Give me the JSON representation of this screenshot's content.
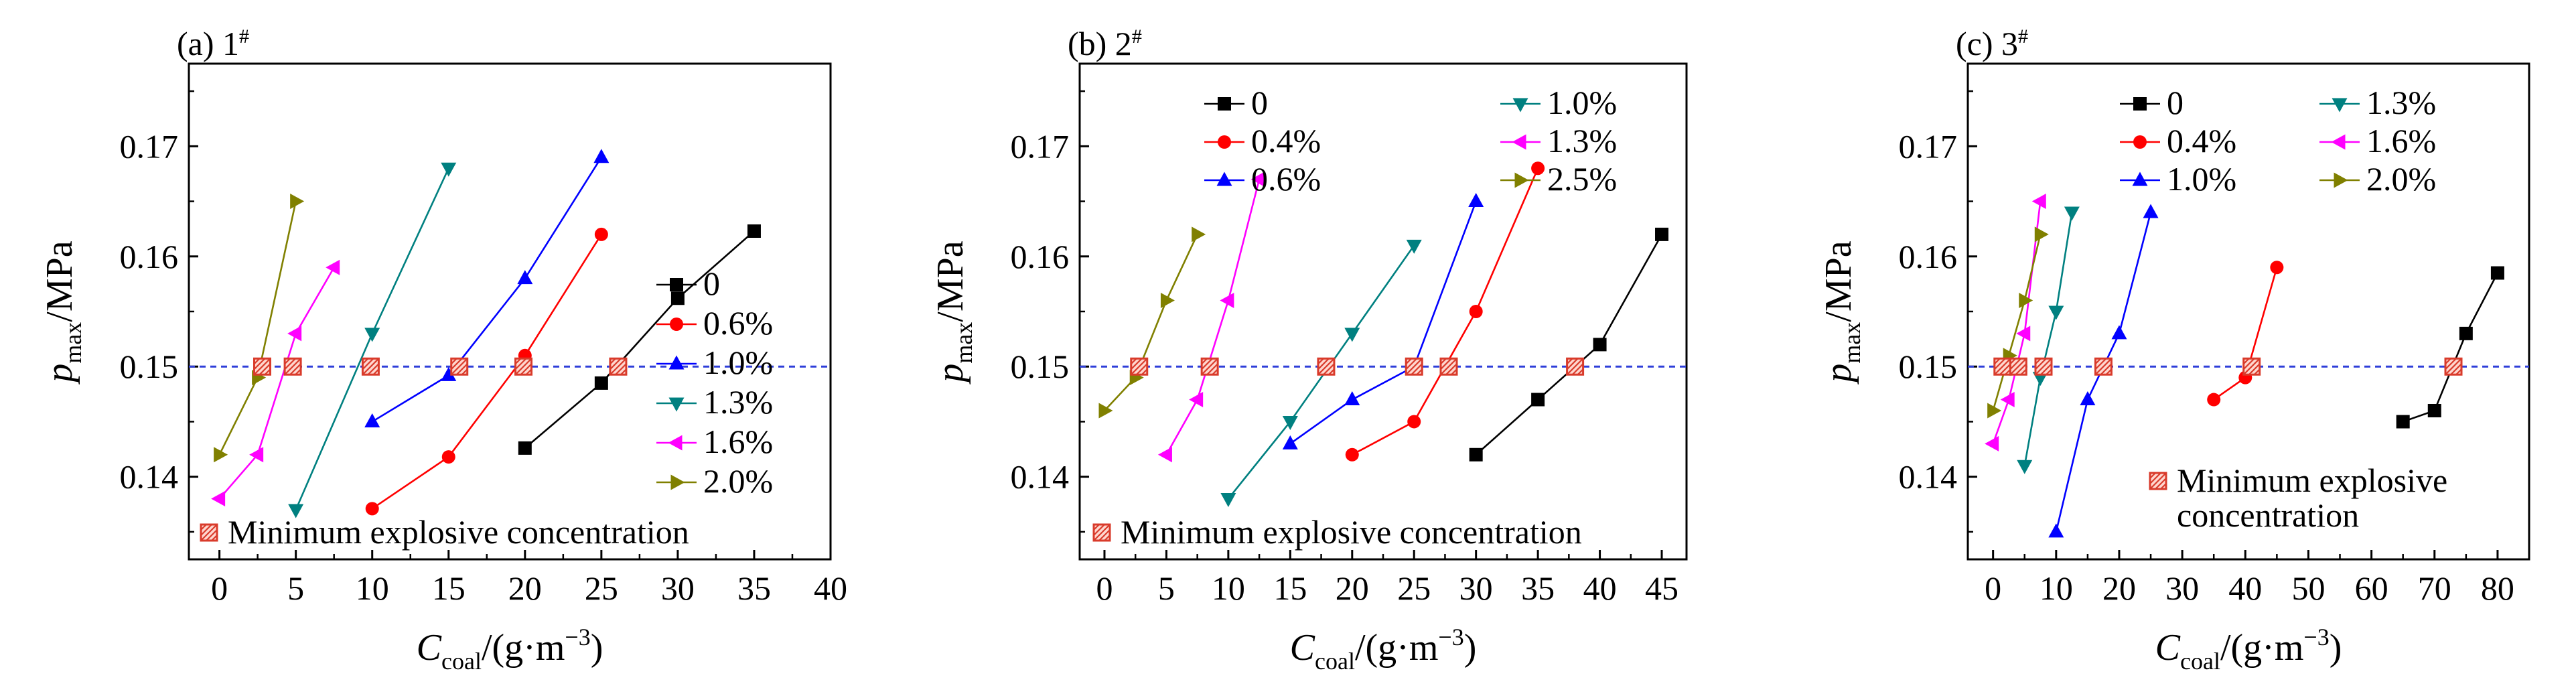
{
  "chart_data": [
    {
      "type": "line",
      "panel_label": "(a)",
      "sample_label": "1",
      "sample_mark": "#",
      "xlabel": "Ccoal/(g·m−3)",
      "ylabel": "pmax/MPa",
      "xlim": [
        -2,
        40
      ],
      "ylim": [
        0.1325,
        0.1775
      ],
      "xticks": [
        0,
        5,
        10,
        15,
        20,
        25,
        30,
        35,
        40
      ],
      "yticks": [
        0.14,
        0.15,
        0.16,
        0.17
      ],
      "reference_line": 0.15,
      "legend_position": "right",
      "annotation": [
        "Minimum explosive concentration"
      ],
      "series": [
        {
          "name": "0",
          "color": "#000000",
          "marker": "square",
          "points": [
            [
              20,
              0.1426
            ],
            [
              25,
              0.1485
            ],
            [
              30,
              0.1562
            ],
            [
              35,
              0.1623
            ]
          ]
        },
        {
          "name": "0.6%",
          "color": "#ff0000",
          "marker": "circle",
          "points": [
            [
              10,
              0.1371
            ],
            [
              15,
              0.1418
            ],
            [
              20,
              0.151
            ],
            [
              25,
              0.162
            ]
          ]
        },
        {
          "name": "1.0%",
          "color": "#0000ff",
          "marker": "triangle-up",
          "points": [
            [
              10,
              0.145
            ],
            [
              15,
              0.1492
            ],
            [
              20,
              0.158
            ],
            [
              25,
              0.169
            ]
          ]
        },
        {
          "name": "1.3%",
          "color": "#008080",
          "marker": "triangle-down",
          "points": [
            [
              5,
              0.137
            ],
            [
              10,
              0.153
            ],
            [
              15,
              0.168
            ]
          ]
        },
        {
          "name": "1.6%",
          "color": "#ff00ff",
          "marker": "triangle-left",
          "points": [
            [
              0,
              0.138
            ],
            [
              2.5,
              0.142
            ],
            [
              5,
              0.153
            ],
            [
              7.5,
              0.159
            ]
          ]
        },
        {
          "name": "2.0%",
          "color": "#808000",
          "marker": "triangle-right",
          "points": [
            [
              0,
              0.142
            ],
            [
              2.5,
              0.149
            ],
            [
              5,
              0.165
            ]
          ]
        }
      ],
      "min_explosive_points": [
        [
          2.8,
          0.15
        ],
        [
          4.8,
          0.15
        ],
        [
          9.9,
          0.15
        ],
        [
          15.7,
          0.15
        ],
        [
          19.9,
          0.15
        ],
        [
          26.1,
          0.15
        ]
      ]
    },
    {
      "type": "line",
      "panel_label": "(b)",
      "sample_label": "2",
      "sample_mark": "#",
      "xlabel": "Ccoal/(g·m−3)",
      "ylabel": "pmax/MPa",
      "xlim": [
        -2,
        47
      ],
      "ylim": [
        0.1325,
        0.1775
      ],
      "xticks": [
        0,
        5,
        10,
        15,
        20,
        25,
        30,
        35,
        40,
        45
      ],
      "yticks": [
        0.14,
        0.15,
        0.16,
        0.17
      ],
      "reference_line": 0.15,
      "legend_position": "top",
      "annotation": [
        "Minimum explosive concentration"
      ],
      "series": [
        {
          "name": "0",
          "color": "#000000",
          "marker": "square",
          "points": [
            [
              30,
              0.142
            ],
            [
              35,
              0.147
            ],
            [
              40,
              0.152
            ],
            [
              45,
              0.162
            ]
          ]
        },
        {
          "name": "0.4%",
          "color": "#ff0000",
          "marker": "circle",
          "points": [
            [
              20,
              0.142
            ],
            [
              25,
              0.145
            ],
            [
              30,
              0.155
            ],
            [
              35,
              0.168
            ]
          ]
        },
        {
          "name": "0.6%",
          "color": "#0000ff",
          "marker": "triangle-up",
          "points": [
            [
              15,
              0.143
            ],
            [
              20,
              0.147
            ],
            [
              25,
              0.15
            ],
            [
              30,
              0.165
            ]
          ]
        },
        {
          "name": "1.0%",
          "color": "#008080",
          "marker": "triangle-down",
          "points": [
            [
              10,
              0.138
            ],
            [
              15,
              0.145
            ],
            [
              20,
              0.153
            ],
            [
              25,
              0.161
            ]
          ]
        },
        {
          "name": "1.3%",
          "color": "#ff00ff",
          "marker": "triangle-left",
          "points": [
            [
              5,
              0.142
            ],
            [
              7.5,
              0.147
            ],
            [
              10,
              0.156
            ],
            [
              12.5,
              0.167
            ]
          ]
        },
        {
          "name": "2.5%",
          "color": "#808000",
          "marker": "triangle-right",
          "points": [
            [
              0,
              0.146
            ],
            [
              2.5,
              0.149
            ],
            [
              5,
              0.156
            ],
            [
              7.5,
              0.162
            ]
          ]
        }
      ],
      "min_explosive_points": [
        [
          2.8,
          0.15
        ],
        [
          8.5,
          0.15
        ],
        [
          17.9,
          0.15
        ],
        [
          25,
          0.15
        ],
        [
          27.8,
          0.15
        ],
        [
          38,
          0.15
        ]
      ]
    },
    {
      "type": "line",
      "panel_label": "(c)",
      "sample_label": "3",
      "sample_mark": "#",
      "xlabel": "Ccoal/(g·m−3)",
      "ylabel": "pmax/MPa",
      "xlim": [
        -4,
        85
      ],
      "ylim": [
        0.1325,
        0.1775
      ],
      "xticks": [
        0,
        10,
        20,
        30,
        40,
        50,
        60,
        70,
        80
      ],
      "yticks": [
        0.14,
        0.15,
        0.16,
        0.17
      ],
      "reference_line": 0.15,
      "legend_position": "top",
      "annotation": [
        "Minimum explosive",
        "concentration"
      ],
      "series": [
        {
          "name": "0",
          "color": "#000000",
          "marker": "square",
          "points": [
            [
              65,
              0.145
            ],
            [
              70,
              0.146
            ],
            [
              75,
              0.153
            ],
            [
              80,
              0.1585
            ]
          ]
        },
        {
          "name": "0.4%",
          "color": "#ff0000",
          "marker": "circle",
          "points": [
            [
              35,
              0.147
            ],
            [
              40,
              0.149
            ],
            [
              45,
              0.159
            ]
          ]
        },
        {
          "name": "1.0%",
          "color": "#0000ff",
          "marker": "triangle-up",
          "points": [
            [
              10,
              0.135
            ],
            [
              15,
              0.147
            ],
            [
              20,
              0.153
            ],
            [
              25,
              0.164
            ]
          ]
        },
        {
          "name": "1.3%",
          "color": "#008080",
          "marker": "triangle-down",
          "points": [
            [
              5,
              0.141
            ],
            [
              7.5,
              0.149
            ],
            [
              10,
              0.155
            ],
            [
              12.5,
              0.164
            ]
          ]
        },
        {
          "name": "1.6%",
          "color": "#ff00ff",
          "marker": "triangle-left",
          "points": [
            [
              0,
              0.143
            ],
            [
              2.5,
              0.147
            ],
            [
              5,
              0.153
            ],
            [
              7.5,
              0.165
            ]
          ]
        },
        {
          "name": "2.0%",
          "color": "#808000",
          "marker": "triangle-right",
          "points": [
            [
              0,
              0.146
            ],
            [
              2.5,
              0.151
            ],
            [
              5,
              0.156
            ],
            [
              7.5,
              0.162
            ]
          ]
        }
      ],
      "min_explosive_points": [
        [
          1.5,
          0.15
        ],
        [
          4,
          0.15
        ],
        [
          8,
          0.15
        ],
        [
          17.5,
          0.15
        ],
        [
          41,
          0.15
        ],
        [
          73,
          0.15
        ]
      ]
    }
  ]
}
